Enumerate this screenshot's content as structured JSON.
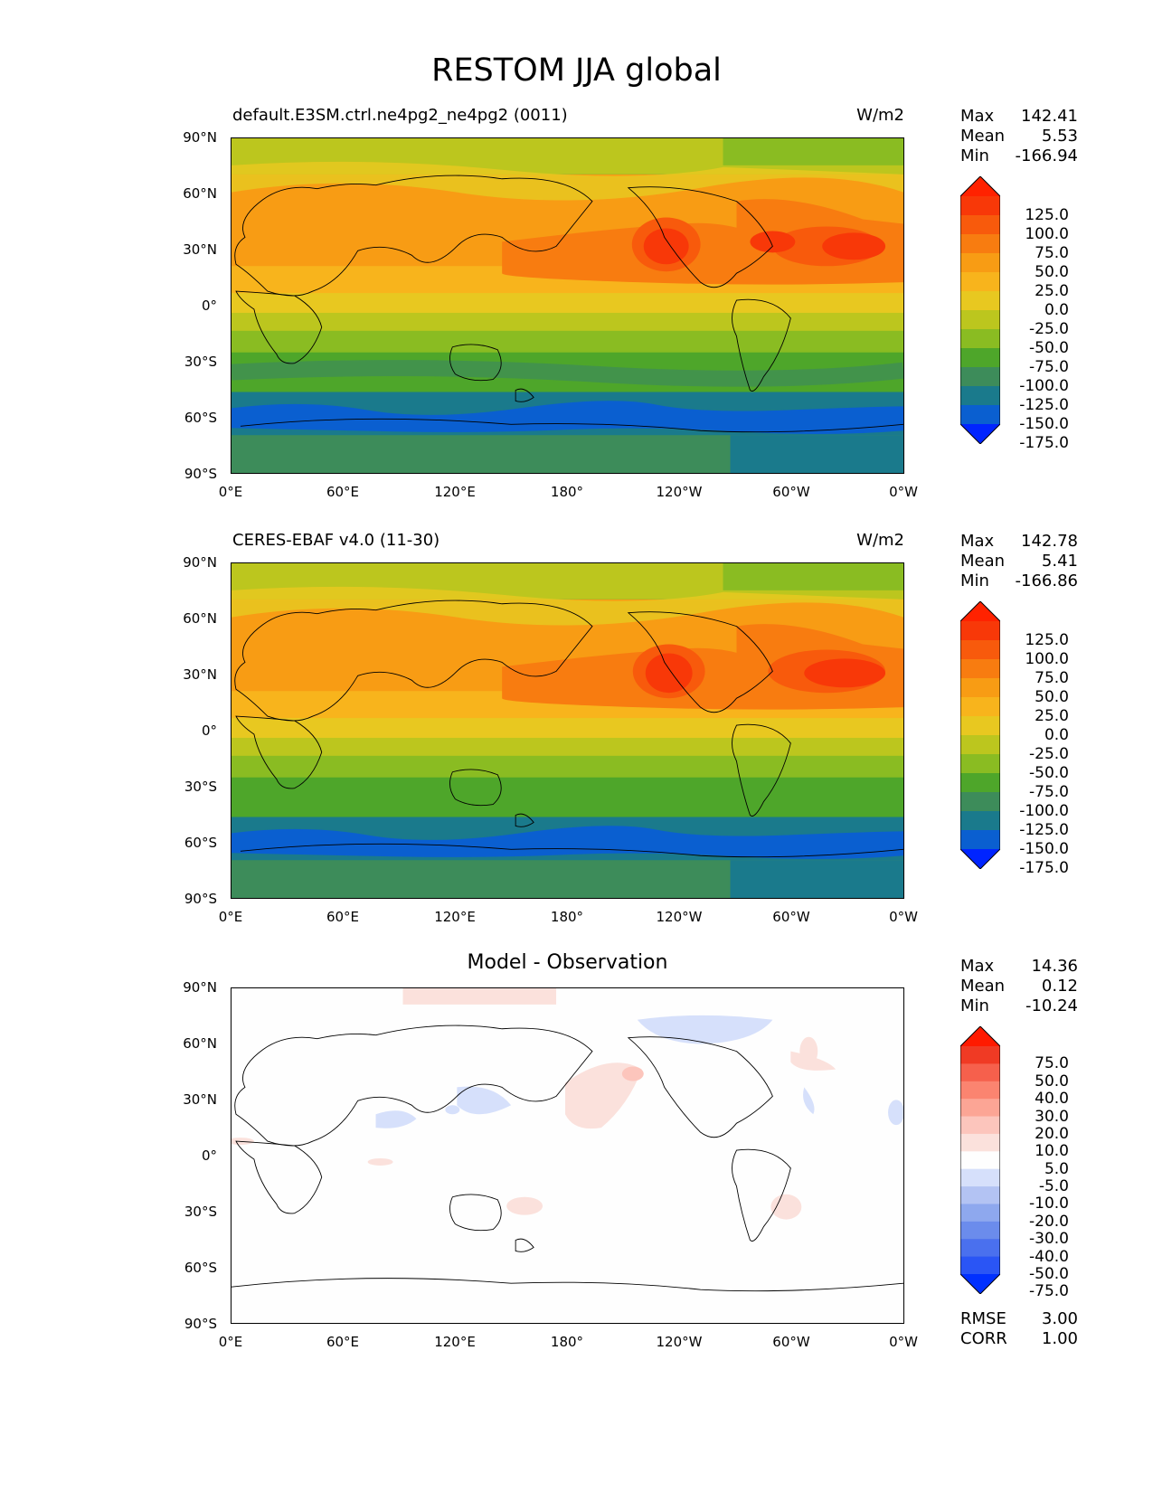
{
  "title": "RESTOM JJA global",
  "panels": [
    {
      "label": "default.E3SM.ctrl.ne4pg2_ne4pg2 (0011)",
      "units": "W/m2",
      "stats": {
        "max_label": "Max",
        "max": "142.41",
        "mean_label": "Mean",
        "mean": "5.53",
        "min_label": "Min",
        "min": "-166.94"
      },
      "colorbar_labels": [
        "125.0",
        "100.0",
        "75.0",
        "50.0",
        "25.0",
        "0.0",
        "-25.0",
        "-50.0",
        "-75.0",
        "-100.0",
        "-125.0",
        "-150.0",
        "-175.0"
      ]
    },
    {
      "label": "CERES-EBAF v4.0 (11-30)",
      "units": "W/m2",
      "stats": {
        "max_label": "Max",
        "max": "142.78",
        "mean_label": "Mean",
        "mean": "5.41",
        "min_label": "Min",
        "min": "-166.86"
      },
      "colorbar_labels": [
        "125.0",
        "100.0",
        "75.0",
        "50.0",
        "25.0",
        "0.0",
        "-25.0",
        "-50.0",
        "-75.0",
        "-100.0",
        "-125.0",
        "-150.0",
        "-175.0"
      ]
    },
    {
      "label": "Model - Observation",
      "units": "",
      "stats": {
        "max_label": "Max",
        "max": "14.36",
        "mean_label": "Mean",
        "mean": "0.12",
        "min_label": "Min",
        "min": "-10.24"
      },
      "colorbar_labels": [
        "75.0",
        "50.0",
        "40.0",
        "30.0",
        "20.0",
        "10.0",
        "5.0",
        "-5.0",
        "-10.0",
        "-20.0",
        "-30.0",
        "-40.0",
        "-50.0",
        "-75.0"
      ]
    }
  ],
  "lat_ticks": [
    "90°N",
    "60°N",
    "30°N",
    "0°",
    "30°S",
    "60°S",
    "90°S"
  ],
  "lon_ticks": [
    "0°E",
    "60°E",
    "120°E",
    "180°",
    "120°W",
    "60°W",
    "0°W"
  ],
  "diff_stats": {
    "rmse_label": "RMSE",
    "rmse": "3.00",
    "corr_label": "CORR",
    "corr": "1.00"
  },
  "colors": {
    "abs_scale": [
      "#0024ff",
      "#0a5fd0",
      "#1a7a8c",
      "#3d8c5a",
      "#4ea62a",
      "#8abc22",
      "#bcc61e",
      "#e8c820",
      "#f8b41c",
      "#f89c14",
      "#f87c10",
      "#f85a0c",
      "#f83808",
      "#ff2200"
    ],
    "diff_scale": [
      "#0030ff",
      "#2a55f5",
      "#4a70ee",
      "#6b8cec",
      "#8ea8ee",
      "#b3c3f3",
      "#d6e0fb",
      "#fefefe",
      "#fbe1dc",
      "#fcc5bc",
      "#fca595",
      "#fb8470",
      "#f6604c",
      "#f03a24",
      "#ff1a00"
    ]
  }
}
